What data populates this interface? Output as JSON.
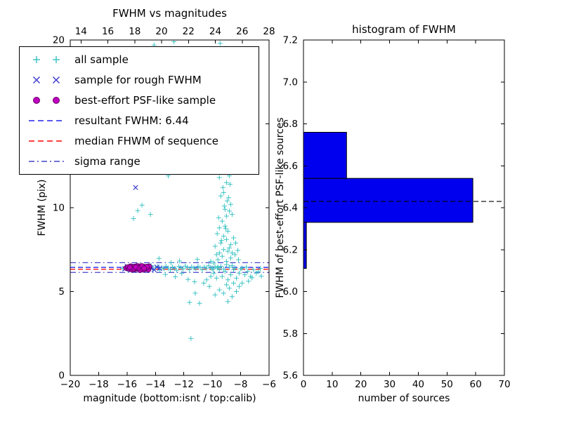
{
  "figure": {
    "background": "#ffffff"
  },
  "chart_data": [
    {
      "type": "scatter",
      "title": "FWHM vs magnitudes",
      "xlabel": "magnitude (bottom:isnt / top:calib)",
      "ylabel": "FWHM (pix)",
      "xlim": [
        -20,
        -6
      ],
      "ylim": [
        0,
        20
      ],
      "x_ticks_bottom": [
        -20,
        -18,
        -16,
        -14,
        -12,
        -10,
        -8,
        -6
      ],
      "x_top_lim": [
        13.2,
        28
      ],
      "x_ticks_top": [
        14,
        16,
        18,
        20,
        22,
        24,
        26,
        28
      ],
      "y_ticks": [
        0,
        5,
        10,
        15,
        20
      ],
      "series": [
        {
          "name": "all sample",
          "marker": "plus",
          "color": "#40c4c4",
          "points": [
            [
              -16.3,
              6.38
            ],
            [
              -16.1,
              6.45
            ],
            [
              -15.95,
              6.32
            ],
            [
              -15.8,
              6.5
            ],
            [
              -15.65,
              6.42
            ],
            [
              -15.5,
              6.28
            ],
            [
              -15.35,
              6.47
            ],
            [
              -15.2,
              6.36
            ],
            [
              -15.05,
              6.52
            ],
            [
              -14.9,
              6.41
            ],
            [
              -14.75,
              6.3
            ],
            [
              -14.6,
              6.48
            ],
            [
              -14.45,
              6.39
            ],
            [
              -14.3,
              6.55
            ],
            [
              -14.15,
              6.33
            ],
            [
              -14.0,
              6.44
            ],
            [
              -13.85,
              6.5
            ],
            [
              -13.7,
              6.29
            ],
            [
              -13.55,
              6.42
            ],
            [
              -13.4,
              6.37
            ],
            [
              -13.25,
              6.51
            ],
            [
              -13.1,
              6.4
            ],
            [
              -12.95,
              6.3
            ],
            [
              -12.8,
              6.46
            ],
            [
              -12.65,
              6.38
            ],
            [
              -12.5,
              6.27
            ],
            [
              -12.35,
              6.49
            ],
            [
              -12.2,
              6.41
            ],
            [
              -12.05,
              6.35
            ],
            [
              -11.9,
              6.52
            ],
            [
              -11.75,
              6.44
            ],
            [
              -11.6,
              6.31
            ],
            [
              -11.45,
              6.47
            ],
            [
              -11.3,
              6.4
            ],
            [
              -11.15,
              6.36
            ],
            [
              -11.0,
              6.5
            ],
            [
              -10.85,
              6.42
            ],
            [
              -10.7,
              6.3
            ],
            [
              -10.55,
              6.45
            ],
            [
              -10.4,
              6.39
            ],
            [
              -10.25,
              6.54
            ],
            [
              -10.1,
              6.41
            ],
            [
              -9.95,
              6.33
            ],
            [
              -9.8,
              6.48
            ],
            [
              -9.65,
              6.4
            ],
            [
              -13.3,
              6.02
            ],
            [
              -12.6,
              5.88
            ],
            [
              -12.15,
              6.08
            ],
            [
              -11.7,
              5.72
            ],
            [
              -11.25,
              5.58
            ],
            [
              -12.9,
              6.72
            ],
            [
              -12.3,
              6.82
            ],
            [
              -11.05,
              6.92
            ],
            [
              -13.75,
              6.98
            ],
            [
              -15.55,
              9.35
            ],
            [
              -15.25,
              9.82
            ],
            [
              -14.95,
              10.15
            ],
            [
              -14.35,
              9.6
            ],
            [
              -13.55,
              12.55
            ],
            [
              -13.1,
              11.9
            ],
            [
              -14.1,
              19.7
            ],
            [
              -12.7,
              19.9
            ],
            [
              -9.45,
              19.8
            ],
            [
              -9.05,
              19.5
            ],
            [
              -9.6,
              18.9
            ],
            [
              -8.85,
              18.3
            ],
            [
              -11.5,
              2.2
            ],
            [
              -11.6,
              4.35
            ],
            [
              -10.9,
              4.3
            ],
            [
              -11.2,
              4.9
            ],
            [
              -8.9,
              4.4
            ],
            [
              -8.6,
              4.7
            ],
            [
              -9.2,
              4.9
            ],
            [
              -8.3,
              5.0
            ],
            [
              -8.8,
              5.2
            ],
            [
              -9.5,
              5.1
            ],
            [
              -8.1,
              5.3
            ],
            [
              -7.9,
              5.5
            ],
            [
              -9.0,
              5.4
            ],
            [
              -8.5,
              5.5
            ],
            [
              -10.2,
              5.3
            ],
            [
              -10.6,
              5.5
            ],
            [
              -9.8,
              4.8
            ],
            [
              -10.4,
              5.7
            ],
            [
              -10.1,
              5.9
            ],
            [
              -9.9,
              6.1
            ],
            [
              -9.7,
              5.8
            ],
            [
              -9.5,
              6.3
            ],
            [
              -9.3,
              5.9
            ],
            [
              -9.1,
              6.2
            ],
            [
              -8.9,
              5.7
            ],
            [
              -8.7,
              6.0
            ],
            [
              -8.5,
              6.3
            ],
            [
              -8.3,
              5.8
            ],
            [
              -8.1,
              6.1
            ],
            [
              -7.9,
              6.4
            ],
            [
              -7.7,
              6.0
            ],
            [
              -7.5,
              6.2
            ],
            [
              -7.3,
              5.9
            ],
            [
              -7.1,
              6.3
            ],
            [
              -6.9,
              6.1
            ],
            [
              -10.0,
              6.4
            ],
            [
              -9.6,
              6.45
            ],
            [
              -9.2,
              6.35
            ],
            [
              -8.8,
              6.45
            ],
            [
              -8.4,
              6.4
            ],
            [
              -8.0,
              6.35
            ],
            [
              -7.6,
              6.45
            ],
            [
              -9.4,
              6.5
            ],
            [
              -8.6,
              6.55
            ],
            [
              -9.0,
              6.6
            ],
            [
              -9.9,
              6.7
            ],
            [
              -9.6,
              6.9
            ],
            [
              -9.3,
              7.1
            ],
            [
              -9.0,
              6.8
            ],
            [
              -8.7,
              7.0
            ],
            [
              -8.4,
              7.2
            ],
            [
              -8.15,
              6.9
            ],
            [
              -9.5,
              7.3
            ],
            [
              -8.9,
              7.4
            ],
            [
              -9.2,
              7.5
            ],
            [
              -8.6,
              7.3
            ],
            [
              -9.7,
              7.2
            ],
            [
              -10.1,
              6.8
            ],
            [
              -8.2,
              7.45
            ],
            [
              -9.8,
              7.7
            ],
            [
              -9.4,
              7.9
            ],
            [
              -9.0,
              8.1
            ],
            [
              -8.7,
              7.8
            ],
            [
              -9.2,
              8.3
            ],
            [
              -8.9,
              8.6
            ],
            [
              -9.5,
              8.8
            ],
            [
              -8.5,
              8.2
            ],
            [
              -9.1,
              8.9
            ],
            [
              -8.8,
              7.6
            ],
            [
              -9.35,
              8.05
            ],
            [
              -9.65,
              8.45
            ],
            [
              -8.35,
              7.9
            ],
            [
              -9.05,
              8.75
            ],
            [
              -9.3,
              9.2
            ],
            [
              -9.0,
              9.5
            ],
            [
              -8.8,
              9.8
            ],
            [
              -9.15,
              10.1
            ],
            [
              -8.95,
              10.4
            ],
            [
              -9.4,
              10.7
            ],
            [
              -8.7,
              10.2
            ],
            [
              -9.2,
              10.9
            ],
            [
              -9.55,
              9.4
            ],
            [
              -8.6,
              9.6
            ],
            [
              -9.1,
              9.9
            ],
            [
              -8.85,
              10.6
            ],
            [
              -9.25,
              11.2
            ],
            [
              -9.0,
              11.5
            ],
            [
              -8.8,
              11.9
            ],
            [
              -9.1,
              12.3
            ],
            [
              -9.35,
              12.7
            ],
            [
              -8.9,
              12.1
            ],
            [
              -9.2,
              12.9
            ],
            [
              -8.75,
              11.4
            ],
            [
              -9.5,
              11.8
            ],
            [
              -9.05,
              12.5
            ],
            [
              -9.2,
              13.3
            ],
            [
              -9.0,
              13.8
            ],
            [
              -9.3,
              14.3
            ],
            [
              -8.9,
              14.8
            ],
            [
              -9.1,
              15.3
            ],
            [
              -9.25,
              15.8
            ],
            [
              -8.95,
              13.6
            ],
            [
              -9.15,
              14.1
            ],
            [
              -9.05,
              15.0
            ],
            [
              -9.2,
              16.3
            ],
            [
              -9.0,
              16.9
            ],
            [
              -9.15,
              17.5
            ],
            [
              -9.3,
              18.1
            ],
            [
              -8.95,
              18.6
            ],
            [
              -9.1,
              17.1
            ],
            [
              -7.45,
              5.62
            ],
            [
              -7.2,
              5.82
            ],
            [
              -6.75,
              6.18
            ],
            [
              -6.55,
              5.92
            ],
            [
              -6.62,
              6.38
            ]
          ]
        },
        {
          "name": "sample for rough FWHM",
          "marker": "x",
          "color": "#3d3dcf",
          "points": [
            [
              -16.15,
              6.35
            ],
            [
              -16.0,
              6.5
            ],
            [
              -15.9,
              6.45
            ],
            [
              -15.7,
              6.3
            ],
            [
              -15.5,
              6.52
            ],
            [
              -15.3,
              6.4
            ],
            [
              -15.1,
              6.28
            ],
            [
              -14.9,
              6.45
            ],
            [
              -14.7,
              6.35
            ],
            [
              -14.5,
              6.5
            ],
            [
              -14.3,
              6.4
            ],
            [
              -14.1,
              6.3
            ],
            [
              -13.9,
              6.46
            ],
            [
              -13.7,
              6.38
            ],
            [
              -15.4,
              11.2
            ]
          ]
        },
        {
          "name": "best-effort PSF-like sample",
          "marker": "circle",
          "color": "#bf00bf",
          "edge_color": "#660066",
          "points": [
            [
              -16.05,
              6.4
            ],
            [
              -15.95,
              6.45
            ],
            [
              -15.85,
              6.35
            ],
            [
              -15.75,
              6.5
            ],
            [
              -15.65,
              6.3
            ],
            [
              -15.6,
              6.42
            ],
            [
              -15.5,
              6.48
            ],
            [
              -15.45,
              6.33
            ],
            [
              -15.35,
              6.44
            ],
            [
              -15.25,
              6.38
            ],
            [
              -15.15,
              6.5
            ],
            [
              -15.05,
              6.35
            ],
            [
              -15.0,
              6.45
            ],
            [
              -14.9,
              6.4
            ],
            [
              -14.85,
              6.3
            ],
            [
              -14.75,
              6.47
            ],
            [
              -14.65,
              6.36
            ],
            [
              -14.55,
              6.44
            ],
            [
              -14.5,
              6.32
            ],
            [
              -14.45,
              6.5
            ],
            [
              -15.55,
              6.37
            ],
            [
              -15.3,
              6.52
            ],
            [
              -15.1,
              6.28
            ],
            [
              -14.7,
              6.42
            ],
            [
              -14.6,
              6.48
            ],
            [
              -15.8,
              6.44
            ],
            [
              -15.2,
              6.41
            ],
            [
              -14.95,
              6.52
            ],
            [
              -15.4,
              6.46
            ],
            [
              -14.8,
              6.38
            ]
          ]
        }
      ],
      "hlines": [
        {
          "label": "resultant FWHM: 6.44",
          "y": 6.44,
          "style": "dashed",
          "color": "#2222ee"
        },
        {
          "label": "median FHWM of sequence",
          "y": 6.33,
          "style": "dashed",
          "color": "#ff0000"
        },
        {
          "label": "sigma range",
          "y": 6.72,
          "style": "dashdot",
          "color": "#4444cc"
        },
        {
          "label": "sigma range",
          "y": 6.14,
          "style": "dashdot",
          "color": "#4444cc"
        }
      ],
      "legend": {
        "items": [
          {
            "label": "all sample",
            "type": "marker",
            "marker": "plus",
            "color": "#40c4c4"
          },
          {
            "label": "sample for rough FWHM",
            "type": "marker",
            "marker": "x",
            "color": "#3d3dcf"
          },
          {
            "label": "best-effort PSF-like sample",
            "type": "marker",
            "marker": "circle",
            "color": "#bf00bf",
            "edge_color": "#660066"
          },
          {
            "label": "resultant FWHM: 6.44",
            "type": "line",
            "style": "dashed",
            "color": "#2222ee"
          },
          {
            "label": "median FHWM of sequence",
            "type": "line",
            "style": "dashed",
            "color": "#ff0000"
          },
          {
            "label": "sigma range",
            "type": "line",
            "style": "dashdot",
            "color": "#4444cc"
          }
        ]
      }
    },
    {
      "type": "bar",
      "orientation": "horizontal",
      "title": "histogram of FWHM",
      "xlabel": "number of sources",
      "ylabel": "FWHM of best-effort PSF-like sources",
      "xlim": [
        0,
        70
      ],
      "ylim": [
        5.6,
        7.2
      ],
      "x_ticks": [
        0,
        10,
        20,
        30,
        40,
        50,
        60,
        70
      ],
      "y_ticks": [
        5.6,
        5.8,
        6.0,
        6.2,
        6.4,
        6.6,
        6.8,
        7.0,
        7.2
      ],
      "bar_color": "#0000ee",
      "bar_edge_color": "#000000",
      "bins": [
        {
          "y_from": 6.11,
          "y_to": 6.33,
          "count": 1
        },
        {
          "y_from": 6.33,
          "y_to": 6.54,
          "count": 59
        },
        {
          "y_from": 6.54,
          "y_to": 6.76,
          "count": 15
        }
      ],
      "hline": {
        "y": 6.43,
        "style": "dashed",
        "color": "#000000"
      }
    }
  ]
}
